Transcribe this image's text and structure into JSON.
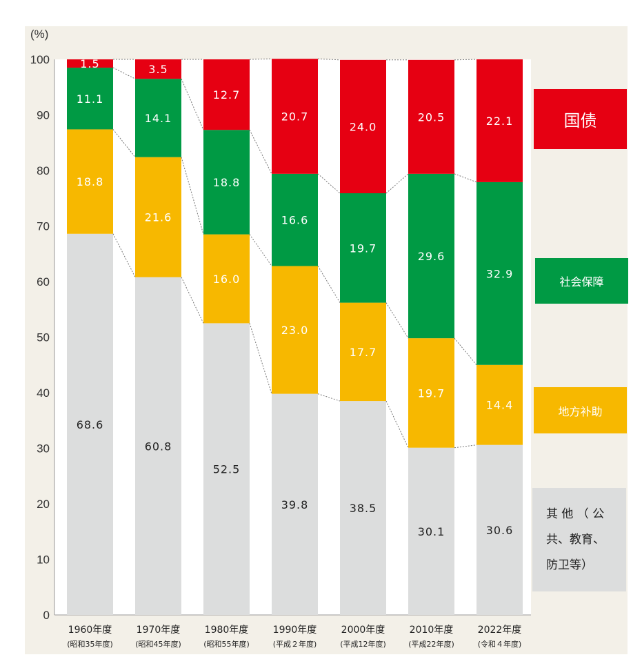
{
  "chart_data": {
    "type": "bar",
    "stacked": true,
    "percent": true,
    "ylabel": "(%)",
    "ylim": [
      0,
      100
    ],
    "yticks": [
      0,
      10,
      20,
      30,
      40,
      50,
      60,
      70,
      80,
      90,
      100
    ],
    "categories": [
      "1960年度",
      "1970年度",
      "1980年度",
      "1990年度",
      "2000年度",
      "2010年度",
      "2022年度"
    ],
    "subcategories": [
      "(昭和35年度)",
      "(昭和45年度)",
      "(昭和55年度)",
      "(平成２年度)",
      "(平成12年度)",
      "(平成22年度)",
      "(令和４年度)"
    ],
    "series": [
      {
        "name": "其他（公共、教育、防卫等）",
        "color": "#dcdddd",
        "text_color": "#222222",
        "values": [
          68.6,
          60.8,
          52.5,
          39.8,
          38.5,
          30.1,
          30.6
        ]
      },
      {
        "name": "地方补助",
        "color": "#f7b800",
        "text_color": "#ffffff",
        "values": [
          18.8,
          21.6,
          16.0,
          23.0,
          17.7,
          19.7,
          14.4
        ]
      },
      {
        "name": "社会保障",
        "color": "#009a44",
        "text_color": "#ffffff",
        "values": [
          11.1,
          14.1,
          18.8,
          16.6,
          19.7,
          29.6,
          32.9
        ]
      },
      {
        "name": "国债",
        "color": "#e60012",
        "text_color": "#ffffff",
        "values": [
          1.5,
          3.5,
          12.7,
          20.7,
          24.0,
          20.5,
          22.1
        ]
      }
    ],
    "legend_placement": "right",
    "connectors": "dotted"
  },
  "legend": {
    "debt": "国债",
    "social": "社会保障",
    "local": "地方补助",
    "other_lines": [
      "其 他 （ 公",
      "共、教育、",
      "防卫等）"
    ]
  }
}
